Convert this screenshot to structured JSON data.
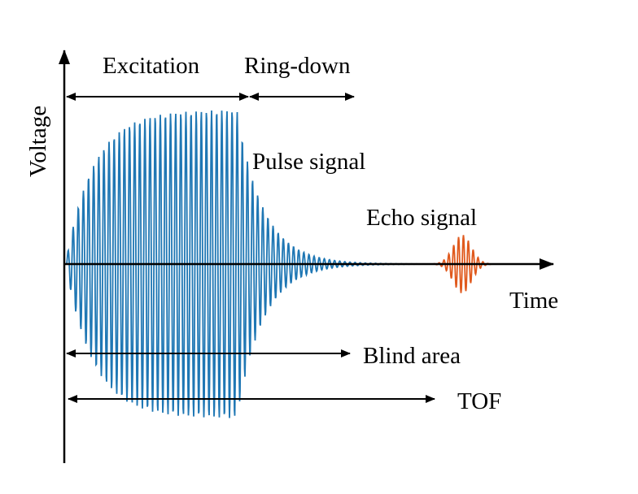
{
  "labels": {
    "excitation": "Excitation",
    "ring_down": "Ring-down",
    "voltage": "Voltage",
    "pulse_signal": "Pulse signal",
    "echo_signal": "Echo signal",
    "time": "Time",
    "blind_area": "Blind area",
    "tof": "TOF"
  },
  "colors": {
    "pulse": "#1f77b4",
    "echo": "#e05a1e",
    "axis": "#000000"
  }
}
